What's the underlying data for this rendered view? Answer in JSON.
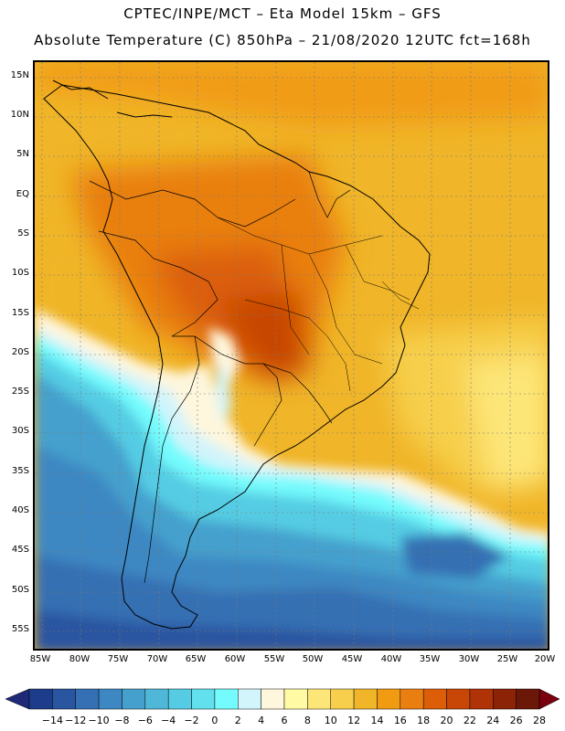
{
  "header": {
    "line1": "CPTEC/INPE/MCT –   Eta Model 15km – GFS",
    "line2": "Absolute Temperature (C) 850hPa – 21/08/2020 12UTC fct=168h"
  },
  "map": {
    "lat_labels": [
      "15N",
      "10N",
      "5N",
      "EQ",
      "5S",
      "10S",
      "15S",
      "20S",
      "25S",
      "30S",
      "35S",
      "40S",
      "45S",
      "50S",
      "55S"
    ],
    "lon_labels": [
      "85W",
      "80W",
      "75W",
      "70W",
      "65W",
      "60W",
      "55W",
      "50W",
      "45W",
      "40W",
      "35W",
      "30W",
      "25W",
      "20W"
    ],
    "field": "Absolute Temperature (C) at 850hPa"
  },
  "colorbar": {
    "labels": [
      "-14",
      "-12",
      "-10",
      "-8",
      "-6",
      "-4",
      "-2",
      "0",
      "2",
      "4",
      "6",
      "8",
      "10",
      "12",
      "14",
      "16",
      "18",
      "20",
      "22",
      "24",
      "26",
      "28"
    ],
    "colors": [
      "#1e3c8c",
      "#2a55a0",
      "#3470b3",
      "#3d88c2",
      "#45a0cd",
      "#4fb8d9",
      "#55cce3",
      "#62e0ee",
      "#73fbfd",
      "#d2f4fb",
      "#fef6dd",
      "#fffaa3",
      "#fde678",
      "#f7cf4c",
      "#f0b528",
      "#f19b12",
      "#e97f10",
      "#dc5e08",
      "#c84706",
      "#b03207",
      "#8c2306",
      "#6b1809"
    ],
    "under_color": "#1e2a78",
    "over_color": "#78000f"
  }
}
